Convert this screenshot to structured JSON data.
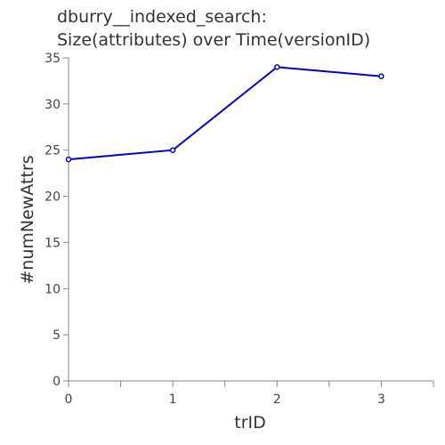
{
  "chart_data": {
    "type": "line",
    "title_lines": [
      "dburry__indexed_search:",
      "Size(attributes) over Time(versionID)"
    ],
    "xlabel": "trID",
    "ylabel": "#numNewAttrs",
    "x": [
      0,
      1,
      2,
      3
    ],
    "xticks": [
      "0",
      "1",
      "2",
      "3"
    ],
    "xlim": [
      0,
      3.5
    ],
    "ylim": [
      0,
      35
    ],
    "yticks": [
      "0",
      "5",
      "10",
      "15",
      "20",
      "25",
      "30",
      "35"
    ],
    "grid": false,
    "series": [
      {
        "values": [
          24,
          25,
          34,
          33
        ],
        "color": "#0000cc"
      }
    ],
    "axis_color": "#888888"
  }
}
